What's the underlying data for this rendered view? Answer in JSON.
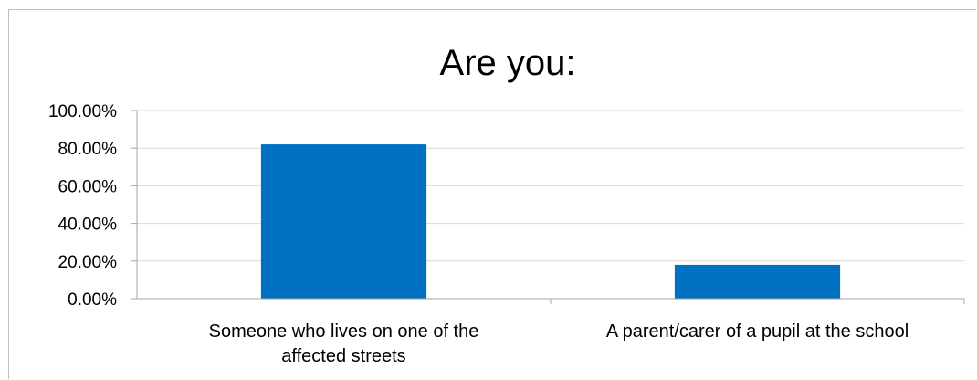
{
  "chart_data": {
    "type": "bar",
    "title": "Are you:",
    "xlabel": "",
    "ylabel": "",
    "categories": [
      [
        "Someone who lives on one of the",
        "affected streets"
      ],
      [
        "A parent/carer of a pupil at the school"
      ]
    ],
    "values": [
      82.0,
      18.0
    ],
    "ylim": [
      0,
      100
    ],
    "yticks": [
      0,
      20,
      40,
      60,
      80,
      100
    ],
    "ytick_labels": [
      "0.00%",
      "20.00%",
      "40.00%",
      "60.00%",
      "80.00%",
      "100.00%"
    ],
    "grid": true,
    "legend": "none",
    "colors": {
      "bar": "#0070C0",
      "gridline": "#D9D9D9",
      "axis": "#A6A6A6"
    }
  }
}
